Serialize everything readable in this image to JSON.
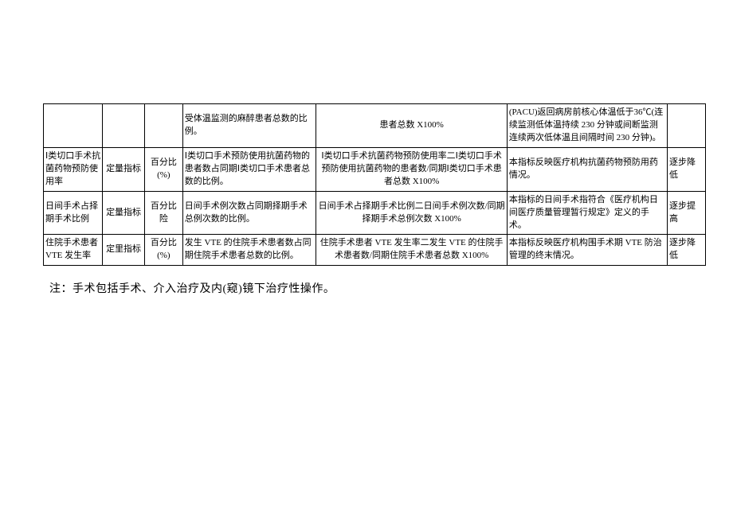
{
  "table": {
    "rows": [
      {
        "c0": "",
        "c1": "",
        "c2": "",
        "c3": "受体温监测的麻醉患者总数的比例。",
        "c4": "患者总数 X100%",
        "c5": "(PACU)返回病房前核心体温低于36℃(连续监测低体温持续 230 分钟或间断监测连续两次低体温且间隔时间 230 分钟)。",
        "c6": ""
      },
      {
        "c0": "Ⅰ类切口手术抗菌药物预防使用率",
        "c1": "定量指标",
        "c2": "百分比(%)",
        "c3": "Ⅰ类切口手术预防使用抗菌药物的患者数占同期Ⅰ类切口手术患者总数的比例。",
        "c4": "Ⅰ类切口手术抗菌药物预防使用率二Ⅰ类切口手术预防使用抗菌药物的患者数/同期Ⅰ类切口手术患者总数 X100%",
        "c5": "本指标反映医疗机构抗菌药物预防用药情况。",
        "c6": "逐步降低"
      },
      {
        "c0": "日间手术占择期手术比例",
        "c1": "定量指标",
        "c2": "百分比险",
        "c3": "日间手术例次数占同期择期手术总例次数的比例。",
        "c4": "日间手术占择期手术比例二日间手术例次数/同期择期手术总例次数 X100%",
        "c5": "本指标的日间手术指符合《医疗机构日间医疗质量管理暂行规定》定义的手术。",
        "c6": "逐步提高"
      },
      {
        "c0": "住院手术患者 VTE 发生率",
        "c1": "定里指标",
        "c2": "百分比(%)",
        "c3": "发生 VTE 的住院手术患者数占同期住院手术患者总数的比例。",
        "c4": "住院手术患者 VTE 发生率二发生 VTE 的住院手术患者数/同期住院手术患者总数 X100%",
        "c5": "本指标反映医疗机构围手术期 VTE 防治管理的终末情况。",
        "c6": "逐步降低"
      }
    ]
  },
  "note": "注：手术包括手术、介入治疗及内(窥)镜下治疗性操作。"
}
